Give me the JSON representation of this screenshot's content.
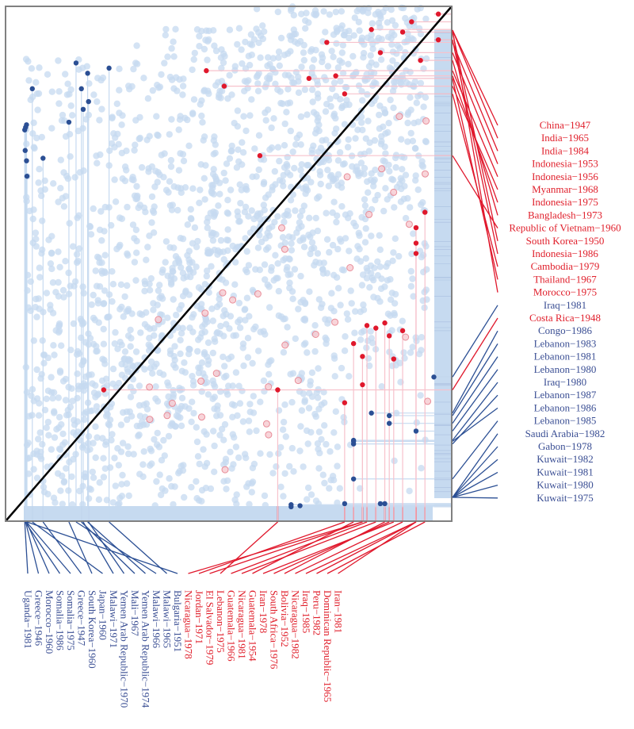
{
  "chart_data": {
    "type": "scatter",
    "title": "",
    "xlabel": "",
    "ylabel": "",
    "xlim": [
      0,
      1
    ],
    "ylim": [
      0,
      1
    ],
    "grid": false,
    "diagonal": "y = x reference line",
    "background_points": "thousands of light-blue points, denser in upper-right and near the diagonal",
    "colors": {
      "background_point": "#c6daf0",
      "diagonal": "#000000",
      "frame": "#808080",
      "rug": "#c6daf0",
      "blue_highlight": "#2b4f94",
      "red_highlight": "#e0182c",
      "blue_link": "#c6daf0",
      "red_link": "#f7c2cc",
      "blue_label": "#3b4f94",
      "red_label": "#e0202c"
    },
    "right_labels": [
      {
        "text": "China−1947",
        "group": "red"
      },
      {
        "text": "India−1965",
        "group": "red"
      },
      {
        "text": "India−1984",
        "group": "red"
      },
      {
        "text": "Indonesia−1953",
        "group": "red"
      },
      {
        "text": "Indonesia−1956",
        "group": "red"
      },
      {
        "text": "Myanmar−1968",
        "group": "red"
      },
      {
        "text": "Indonesia−1975",
        "group": "red"
      },
      {
        "text": "Bangladesh−1973",
        "group": "red"
      },
      {
        "text": "Republic of Vietnam−1960",
        "group": "red"
      },
      {
        "text": "South Korea−1950",
        "group": "red"
      },
      {
        "text": "Indonesia−1986",
        "group": "red"
      },
      {
        "text": "Cambodia−1979",
        "group": "red"
      },
      {
        "text": "Thailand−1967",
        "group": "red"
      },
      {
        "text": "Morocco−1975",
        "group": "red"
      },
      {
        "text": "Iraq−1981",
        "group": "blue"
      },
      {
        "text": "Costa Rica−1948",
        "group": "red"
      },
      {
        "text": "Congo−1986",
        "group": "blue"
      },
      {
        "text": "Lebanon−1983",
        "group": "blue"
      },
      {
        "text": "Lebanon−1981",
        "group": "blue"
      },
      {
        "text": "Lebanon−1980",
        "group": "blue"
      },
      {
        "text": "Iraq−1980",
        "group": "blue"
      },
      {
        "text": "Lebanon−1987",
        "group": "blue"
      },
      {
        "text": "Lebanon−1986",
        "group": "blue"
      },
      {
        "text": "Lebanon−1985",
        "group": "blue"
      },
      {
        "text": "Saudi Arabia−1982",
        "group": "blue"
      },
      {
        "text": "Gabon−1978",
        "group": "blue"
      },
      {
        "text": "Kuwait−1982",
        "group": "blue"
      },
      {
        "text": "Kuwait−1981",
        "group": "blue"
      },
      {
        "text": "Kuwait−1980",
        "group": "blue"
      },
      {
        "text": "Kuwait−1975",
        "group": "blue"
      }
    ],
    "bottom_labels": [
      {
        "text": "Uganda−1981",
        "group": "blue"
      },
      {
        "text": "Greece−1946",
        "group": "blue"
      },
      {
        "text": "Morocco−1960",
        "group": "blue"
      },
      {
        "text": "Somalia−1986",
        "group": "blue"
      },
      {
        "text": "Somalia−1975",
        "group": "blue"
      },
      {
        "text": "Greece−1947",
        "group": "blue"
      },
      {
        "text": "South Korea−1960",
        "group": "blue"
      },
      {
        "text": "Japan−1960",
        "group": "blue"
      },
      {
        "text": "Malawi−1971",
        "group": "blue"
      },
      {
        "text": "Yemen Arab Republic−1970",
        "group": "blue"
      },
      {
        "text": "Mali−1967",
        "group": "blue"
      },
      {
        "text": "Yemen Arab Republic−1974",
        "group": "blue"
      },
      {
        "text": "Malawi−1966",
        "group": "blue"
      },
      {
        "text": "Malawi−1965",
        "group": "blue"
      },
      {
        "text": "Bulgaria−1951",
        "group": "blue"
      },
      {
        "text": "Nicaragua−1978",
        "group": "red"
      },
      {
        "text": "Jordan−1971",
        "group": "red"
      },
      {
        "text": "El Salvador−1979",
        "group": "red"
      },
      {
        "text": "Lebanon−1975",
        "group": "red"
      },
      {
        "text": "Guatemala−1966",
        "group": "red"
      },
      {
        "text": "Nicaragua−1981",
        "group": "red"
      },
      {
        "text": "Guatemala−1954",
        "group": "red"
      },
      {
        "text": "Iran−1978",
        "group": "red"
      },
      {
        "text": "South Africa−1976",
        "group": "red"
      },
      {
        "text": "Bolivia−1952",
        "group": "red"
      },
      {
        "text": "Nicaragua−1982",
        "group": "red"
      },
      {
        "text": "Iraq−1985",
        "group": "red"
      },
      {
        "text": "Peru−1982",
        "group": "red"
      },
      {
        "text": "Dominican Republic−1965",
        "group": "red"
      },
      {
        "text": "Iran−1981",
        "group": "red"
      }
    ],
    "highlight_points_right": [
      {
        "x": 0.97,
        "y": 0.985
      },
      {
        "x": 0.91,
        "y": 0.97
      },
      {
        "x": 0.72,
        "y": 0.93
      },
      {
        "x": 0.84,
        "y": 0.91
      },
      {
        "x": 0.45,
        "y": 0.875
      },
      {
        "x": 0.49,
        "y": 0.845
      },
      {
        "x": 0.74,
        "y": 0.865
      },
      {
        "x": 0.93,
        "y": 0.895
      },
      {
        "x": 0.57,
        "y": 0.71
      },
      {
        "x": 0.89,
        "y": 0.95
      },
      {
        "x": 0.97,
        "y": 0.935
      },
      {
        "x": 0.76,
        "y": 0.83
      },
      {
        "x": 0.68,
        "y": 0.86
      },
      {
        "x": 0.82,
        "y": 0.955
      },
      {
        "x": 0.96,
        "y": 0.28
      },
      {
        "x": 0.22,
        "y": 0.255
      },
      {
        "x": 0.82,
        "y": 0.21
      },
      {
        "x": 0.86,
        "y": 0.205
      },
      {
        "x": 0.86,
        "y": 0.19
      },
      {
        "x": 0.92,
        "y": 0.175
      },
      {
        "x": 0.78,
        "y": 0.157
      },
      {
        "x": 0.78,
        "y": 0.15
      },
      {
        "x": 0.78,
        "y": 0.155
      },
      {
        "x": 0.78,
        "y": 0.082
      },
      {
        "x": 0.76,
        "y": 0.034
      },
      {
        "x": 0.66,
        "y": 0.03
      },
      {
        "x": 0.85,
        "y": 0.034
      },
      {
        "x": 0.84,
        "y": 0.034
      },
      {
        "x": 0.64,
        "y": 0.028
      },
      {
        "x": 0.64,
        "y": 0.032
      }
    ],
    "highlight_points_bottom": [
      {
        "x": 0.043,
        "y": 0.76
      },
      {
        "x": 0.045,
        "y": 0.765
      },
      {
        "x": 0.047,
        "y": 0.77
      },
      {
        "x": 0.044,
        "y": 0.72
      },
      {
        "x": 0.047,
        "y": 0.7
      },
      {
        "x": 0.084,
        "y": 0.705
      },
      {
        "x": 0.142,
        "y": 0.775
      },
      {
        "x": 0.06,
        "y": 0.84
      },
      {
        "x": 0.174,
        "y": 0.8
      },
      {
        "x": 0.186,
        "y": 0.815
      },
      {
        "x": 0.17,
        "y": 0.84
      },
      {
        "x": 0.184,
        "y": 0.87
      },
      {
        "x": 0.158,
        "y": 0.89
      },
      {
        "x": 0.232,
        "y": 0.88
      },
      {
        "x": 0.048,
        "y": 0.67
      },
      {
        "x": 0.8,
        "y": 0.265
      },
      {
        "x": 0.76,
        "y": 0.23
      },
      {
        "x": 0.8,
        "y": 0.32
      },
      {
        "x": 0.61,
        "y": 0.255
      },
      {
        "x": 0.81,
        "y": 0.38
      },
      {
        "x": 0.83,
        "y": 0.375
      },
      {
        "x": 0.78,
        "y": 0.345
      },
      {
        "x": 0.87,
        "y": 0.315
      },
      {
        "x": 0.86,
        "y": 0.36
      },
      {
        "x": 0.85,
        "y": 0.385
      },
      {
        "x": 0.89,
        "y": 0.37
      },
      {
        "x": 0.92,
        "y": 0.57
      },
      {
        "x": 0.92,
        "y": 0.54
      },
      {
        "x": 0.94,
        "y": 0.6
      },
      {
        "x": 0.92,
        "y": 0.52
      }
    ]
  }
}
